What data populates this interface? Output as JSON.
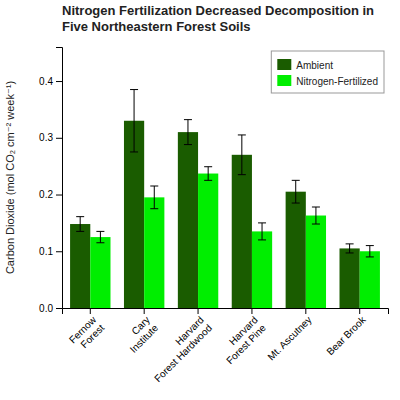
{
  "chart_data": {
    "type": "bar",
    "title": "Nitrogen Fertilization Decreased Decomposition in Five Northeastern Forest Soils",
    "y_label": "Carbon Dioxide (mol CO₂ cm⁻² week⁻¹)",
    "categories": [
      "Fernow\nForest",
      "Cary\nInstitute",
      "Harvard\nForest Hardwood",
      "Harvard\nForest Pine",
      "Mt. Ascutney",
      "Bear Brook"
    ],
    "series": [
      {
        "name": "Ambient",
        "color": "#1a5c00",
        "values": [
          0.148,
          0.33,
          0.31,
          0.27,
          0.205,
          0.105
        ],
        "errors": [
          0.013,
          0.055,
          0.022,
          0.035,
          0.02,
          0.008
        ]
      },
      {
        "name": "Nitrogen-Fertilized",
        "color": "#00ee00",
        "values": [
          0.125,
          0.195,
          0.237,
          0.135,
          0.163,
          0.1
        ],
        "errors": [
          0.01,
          0.02,
          0.012,
          0.015,
          0.015,
          0.01
        ]
      }
    ],
    "ylim": [
      0.0,
      0.46
    ],
    "yticks": [
      {
        "value": 0,
        "label": "0.0"
      },
      0.1,
      0.2,
      0.3,
      0.4
    ],
    "legend": "upper right",
    "grid": false
  }
}
